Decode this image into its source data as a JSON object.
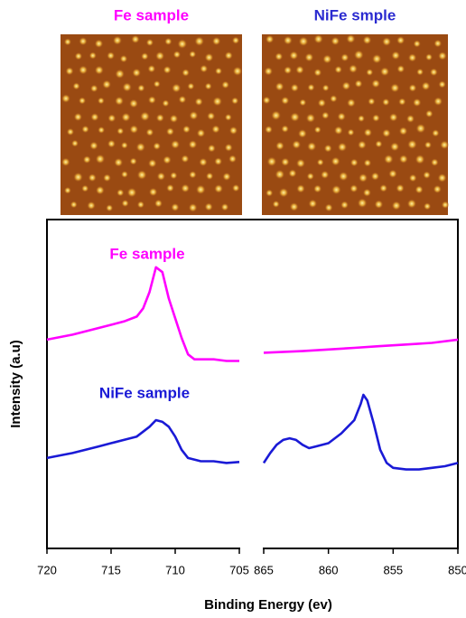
{
  "images": [
    {
      "title": "Fe sample",
      "color": "#ff00ff"
    },
    {
      "title": "NiFe smple",
      "color": "#2b2bd0"
    }
  ],
  "axes": {
    "x_label": "Binding Energy (ev)",
    "y_label": "Intensity (a.u)"
  },
  "chart_data": [
    {
      "type": "line",
      "xlim": [
        720,
        705
      ],
      "xticks": [
        720,
        715,
        710,
        705
      ],
      "ylim": [
        0,
        100
      ],
      "annotations": [
        {
          "text": "Fe sample",
          "color": "#ff00ff"
        },
        {
          "text": "NiFe sample",
          "color": "#1a1ad6"
        }
      ],
      "series": [
        {
          "color": "#ff00ff",
          "x": [
            720,
            718,
            716,
            715,
            714,
            713,
            712.5,
            712,
            711.5,
            711,
            710.5,
            710,
            709.5,
            709,
            708.5,
            707,
            706,
            705
          ],
          "values": [
            63.5,
            65,
            67,
            68,
            69,
            70.5,
            73,
            78,
            85.5,
            84,
            76,
            70,
            64,
            59,
            57.5,
            57.5,
            57,
            57
          ]
        },
        {
          "color": "#1a1ad6",
          "x": [
            720,
            718,
            716,
            715,
            714,
            713,
            712,
            711.5,
            711,
            710.5,
            710,
            709.5,
            709,
            708,
            707,
            706,
            705
          ],
          "values": [
            27.5,
            29,
            31,
            32,
            33,
            34,
            37,
            39,
            38.5,
            37,
            34,
            30,
            27.5,
            26.5,
            26.5,
            26,
            26.3
          ]
        }
      ]
    },
    {
      "type": "line",
      "xlim": [
        865,
        850
      ],
      "xticks": [
        865,
        860,
        855,
        850
      ],
      "ylim": [
        0,
        100
      ],
      "series": [
        {
          "color": "#ff00ff",
          "x": [
            865,
            862,
            860,
            858,
            856,
            854,
            852,
            850
          ],
          "values": [
            59.5,
            60,
            60.5,
            61,
            61.5,
            62,
            62.5,
            63.5
          ]
        },
        {
          "color": "#1a1ad6",
          "x": [
            865,
            864.5,
            864,
            863.5,
            863,
            862.5,
            862,
            861.5,
            861,
            860,
            859,
            858,
            857.5,
            857.3,
            857,
            856.5,
            856,
            855.5,
            855,
            854,
            853,
            852,
            851,
            850
          ],
          "values": [
            26,
            29,
            31.5,
            33,
            33.5,
            33,
            31.5,
            30.5,
            31,
            32,
            35,
            39,
            44,
            46.7,
            45,
            38,
            30,
            26,
            24.5,
            24,
            24,
            24.5,
            25,
            26
          ]
        }
      ]
    }
  ]
}
